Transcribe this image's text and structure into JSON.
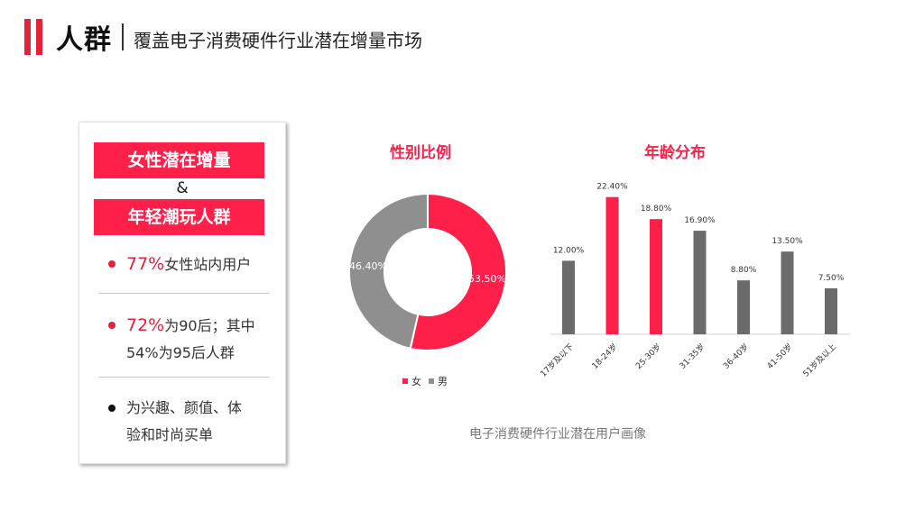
{
  "header": {
    "title": "人群",
    "subtitle": "覆盖电子消费硬件行业潜在增量市场"
  },
  "card": {
    "tag1": "女性潜在增量",
    "amp": "&",
    "tag2": "年轻潮玩人群",
    "bullet1": {
      "highlight": "77%",
      "text": "女性站内用户"
    },
    "bullet2": {
      "highlight": "72%",
      "text": "为90后；其中",
      "line2": "54%为95后人群"
    },
    "bullet3": {
      "line1": "为兴趣、颜值、体",
      "line2": "验和时尚买单"
    }
  },
  "colors": {
    "accent": "#ff2049",
    "gray": "#8f8f8f",
    "bar_gray": "#6b6b6b"
  },
  "caption": "电子消费硬件行业潜在用户画像",
  "chart_data": [
    {
      "type": "pie",
      "title": "性别比例",
      "labels": [
        "女",
        "男"
      ],
      "values": [
        53.5,
        46.4
      ],
      "value_labels": [
        "53.50%",
        "46.40%"
      ],
      "colors": [
        "#ff2049",
        "#8f8f8f"
      ],
      "legend": "bottom"
    },
    {
      "type": "bar",
      "title": "年龄分布",
      "categories": [
        "17岁及以下",
        "18-24岁",
        "25-30岁",
        "31-35岁",
        "36-40岁",
        "41-50岁",
        "51岁及以上"
      ],
      "values": [
        12.0,
        22.4,
        18.8,
        16.9,
        8.8,
        13.5,
        7.5
      ],
      "value_labels": [
        "12.00%",
        "22.40%",
        "18.80%",
        "16.90%",
        "8.80%",
        "13.50%",
        "7.50%"
      ],
      "colors": [
        "#6b6b6b",
        "#ff2049",
        "#ff2049",
        "#6b6b6b",
        "#6b6b6b",
        "#6b6b6b",
        "#6b6b6b"
      ],
      "ylim": [
        0,
        25
      ],
      "grid": false
    }
  ]
}
